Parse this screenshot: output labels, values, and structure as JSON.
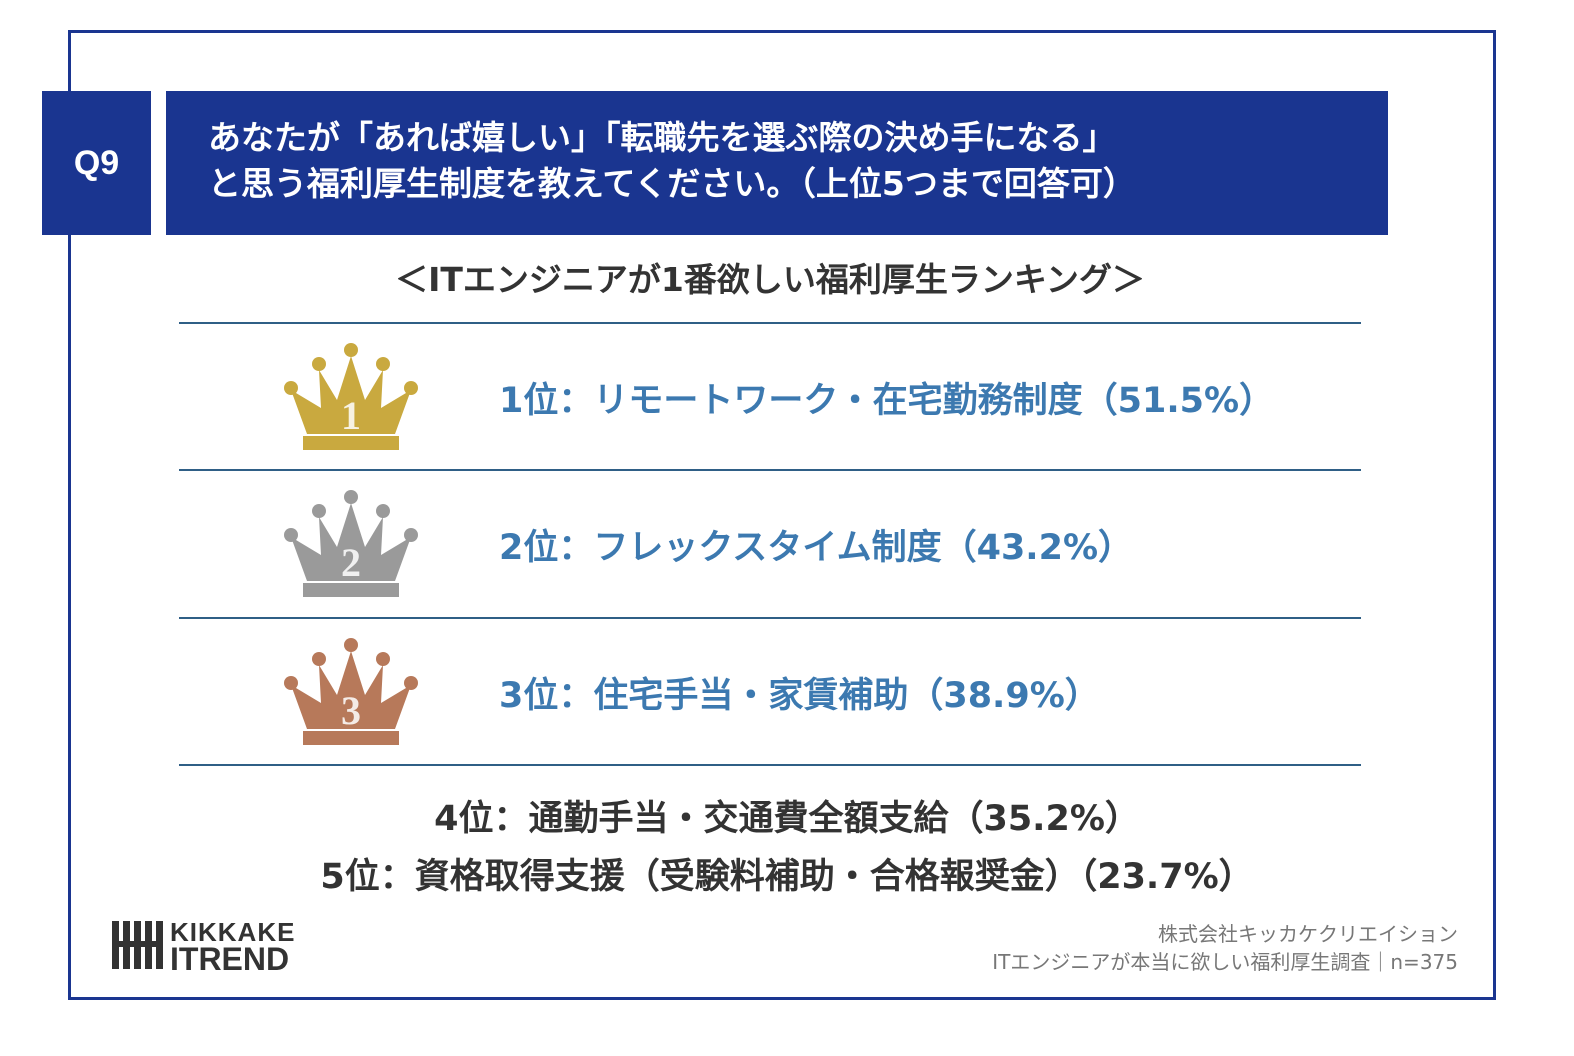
{
  "question": {
    "badge": "Q9",
    "line1": "あなたが「あれば嬉しい」「転職先を選ぶ際の決め手になる」",
    "line2": "と思う福利厚生制度を教えてください。（上位5つまで回答可）"
  },
  "subtitle": "＜ITエンジニアが1番欲しい福利厚生ランキング＞",
  "ranking": [
    {
      "rank": "1",
      "text": "1位：リモートワーク・在宅勤務制度（51.5%）",
      "crown_color": "#c9a93f"
    },
    {
      "rank": "2",
      "text": "2位：フレックスタイム制度（43.2%）",
      "crown_color": "#9a9a9a"
    },
    {
      "rank": "3",
      "text": "3位：住宅手当・家賃補助（38.9%）",
      "crown_color": "#b7795a"
    }
  ],
  "others": [
    "4位：通勤手当・交通費全額支給（35.2%）",
    "5位：資格取得支援（受験料補助・合格報奨金）（23.7%）"
  ],
  "logo": {
    "line1": "KIKKAKE",
    "line2": "ITREND"
  },
  "credit": {
    "line1": "株式会社キッカケクリエイション",
    "line2": "ITエンジニアが本当に欲しい福利厚生調査｜n=375"
  },
  "colors": {
    "navy": "#1a3590",
    "rank_blue": "#3c79b0",
    "rule": "#2f5f86"
  }
}
